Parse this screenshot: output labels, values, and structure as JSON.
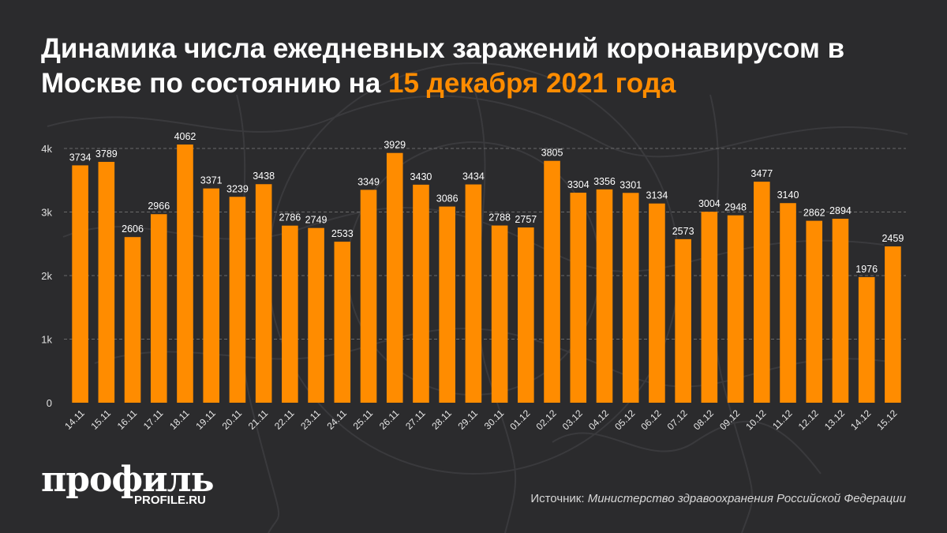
{
  "header": {
    "title_main": "Динамика числа ежедневных заражений коронавирусом в Москве по состоянию на",
    "title_accent": "15 декабря 2021 года"
  },
  "footer": {
    "logo": "профиль",
    "site": "PROFILE.RU",
    "source_label": "Источник:",
    "source_name": "Министерство здравоохранения Российской Федерации"
  },
  "colors": {
    "bar": "#ff8c00",
    "accent": "#ff8c00",
    "background": "#2b2b2d"
  },
  "chart_data": {
    "type": "bar",
    "title": "Динамика числа ежедневных заражений коронавирусом в Москве по состоянию на 15 декабря 2021 года",
    "xlabel": "",
    "ylabel": "",
    "ylim": [
      0,
      4000
    ],
    "yticks": [
      0,
      1000,
      2000,
      3000,
      4000
    ],
    "ytick_labels": [
      "0",
      "1k",
      "2k",
      "3k",
      "4k"
    ],
    "grid": true,
    "categories": [
      "14.11",
      "15.11",
      "16.11",
      "17.11",
      "18.11",
      "19.11",
      "20.11",
      "21.11",
      "22.11",
      "23.11",
      "24.11",
      "25.11",
      "26.11",
      "27.11",
      "28.11",
      "29.11",
      "30.11",
      "01.12",
      "02.12",
      "03.12",
      "04.12",
      "05.12",
      "06.12",
      "07.12",
      "08.12",
      "09.12",
      "10.12",
      "11.12",
      "12.12",
      "13.12",
      "14.12",
      "15.12"
    ],
    "values": [
      3734,
      3789,
      2606,
      2966,
      4062,
      3371,
      3239,
      3438,
      2786,
      2749,
      2533,
      3349,
      3929,
      3430,
      3086,
      3434,
      2788,
      2757,
      3805,
      3304,
      3356,
      3301,
      3134,
      2573,
      3004,
      2948,
      3477,
      3140,
      2862,
      2894,
      1976,
      2459
    ]
  }
}
